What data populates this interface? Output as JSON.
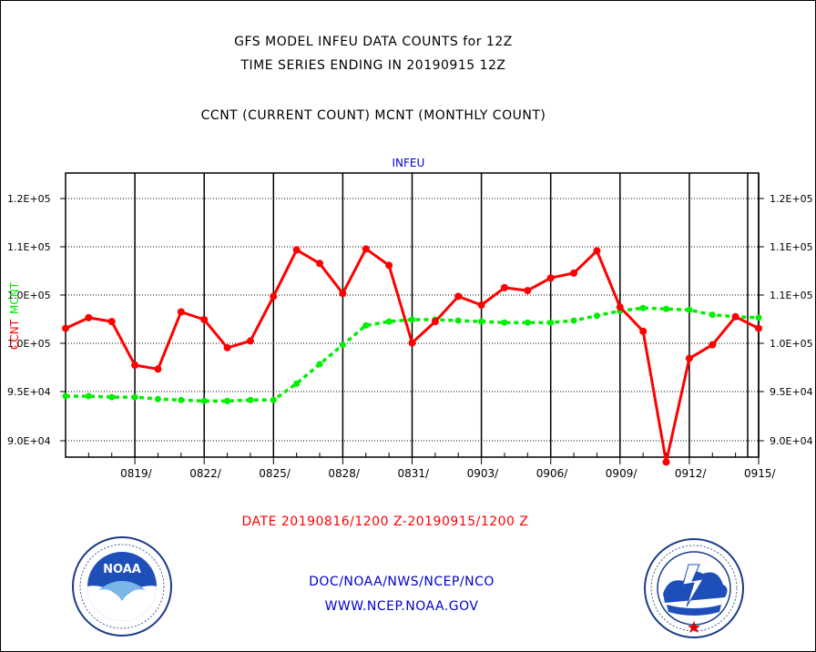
{
  "header": {
    "title_line1": "GFS MODEL INFEU DATA COUNTS for 12Z",
    "title_line2": "TIME SERIES ENDING IN 20190915 12Z",
    "subtitle": "CCNT (CURRENT COUNT) MCNT (MONTHLY COUNT)"
  },
  "footer": {
    "date_range": "DATE 20190816/1200 Z-20190915/1200 Z",
    "org": "DOC/NOAA/NWS/NCEP/NCO",
    "url": "WWW.NCEP.NOAA.GOV"
  },
  "logos": {
    "left": "noaa-logo",
    "right": "nws-logo"
  },
  "colors": {
    "ccnt": "#ff0000",
    "mcnt": "#00ee00",
    "plot_title": "#0000cc",
    "text": "#000000"
  },
  "chart_data": {
    "type": "line",
    "title": "INFEU",
    "ylabel_left": "CCNT",
    "ylabel_left_overlay": "MCNT",
    "x_tick_labels": [
      "0819/",
      "0822/",
      "0825/",
      "0828/",
      "0831/",
      "0903/",
      "0906/",
      "0909/",
      "0912/",
      "0915/"
    ],
    "y_tick_labels_left": [
      "1.2E+05",
      "1.1E+05",
      "1.0E+05",
      "1.0E+05",
      "9.5E+04",
      "9.0E+04"
    ],
    "y_tick_labels_right": [
      "1.2E+05",
      "1.1E+05",
      "1.1E+05",
      "1.0E+05",
      "9.5E+04",
      "9.0E+04"
    ],
    "ylim": [
      89000,
      121500
    ],
    "grid": true,
    "x": [
      "0816",
      "0817",
      "0818",
      "0819",
      "0820",
      "0821",
      "0822",
      "0823",
      "0824",
      "0825",
      "0826",
      "0827",
      "0828",
      "0829",
      "0830",
      "0831",
      "0901",
      "0902",
      "0903",
      "0904",
      "0905",
      "0906",
      "0907",
      "0908",
      "0909",
      "0910",
      "0911",
      "0912",
      "0913",
      "0914",
      "0915"
    ],
    "series": [
      {
        "name": "CCNT",
        "values": [
          106600,
          107700,
          107300,
          102800,
          102400,
          108300,
          107500,
          104600,
          105300,
          109900,
          114700,
          113300,
          110200,
          114800,
          113100,
          105100,
          107300,
          109900,
          109000,
          110800,
          110500,
          111800,
          112300,
          114600,
          108800,
          106300,
          92800,
          103500,
          104900,
          107800,
          106600
        ]
      },
      {
        "name": "MCNT",
        "values": [
          99600,
          99600,
          99500,
          99500,
          99300,
          99200,
          99100,
          99100,
          99200,
          99200,
          100900,
          102900,
          104900,
          106900,
          107300,
          107500,
          107500,
          107400,
          107300,
          107200,
          107200,
          107200,
          107400,
          107900,
          108400,
          108700,
          108600,
          108500,
          108000,
          107800,
          107700
        ]
      }
    ]
  }
}
